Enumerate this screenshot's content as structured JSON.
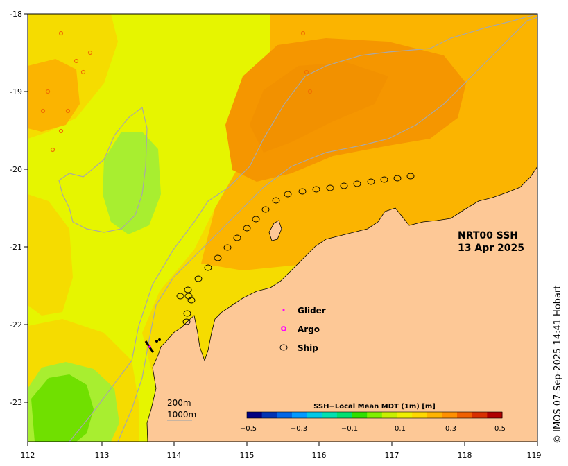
{
  "map": {
    "product_line1": "NRT00 SSH",
    "product_line2": "13 Apr 2025",
    "credit": "© IMOS 07-Sep-2025 14:41 Hobart",
    "x_ticks": [
      "112",
      "113",
      "114",
      "115",
      "116",
      "117",
      "118",
      "119"
    ],
    "y_ticks": [
      "-18",
      "-19",
      "-20",
      "-21",
      "-22",
      "-23"
    ],
    "legend": {
      "glider": "Glider",
      "argo": "Argo",
      "ship": "Ship"
    },
    "scale_legend": {
      "line1": "200m",
      "line2": "1000m"
    },
    "colorbar": {
      "title": "SSH−Local Mean MDT (1m) [m]",
      "ticks": [
        "−0.5",
        "−0.3",
        "−0.1",
        "0.1",
        "0.3",
        "0.5"
      ],
      "colors": [
        "#000080",
        "#0033b3",
        "#0066e6",
        "#0099ff",
        "#00c8e6",
        "#00e0b0",
        "#00e070",
        "#30e000",
        "#80f000",
        "#c8f000",
        "#f0f000",
        "#ffd800",
        "#ffb400",
        "#ff9000",
        "#f06000",
        "#d83000",
        "#b00000"
      ]
    },
    "colors": {
      "land": "#fdc896",
      "yellow_green": "#e6f500",
      "yellow": "#f5dc00",
      "orange_light": "#fbb400",
      "orange": "#f59600",
      "green_light": "#a8ee30",
      "green": "#70e000",
      "contour": "#a8a8a8",
      "glider": "#ff00ff",
      "argo": "#ff00ff"
    }
  }
}
